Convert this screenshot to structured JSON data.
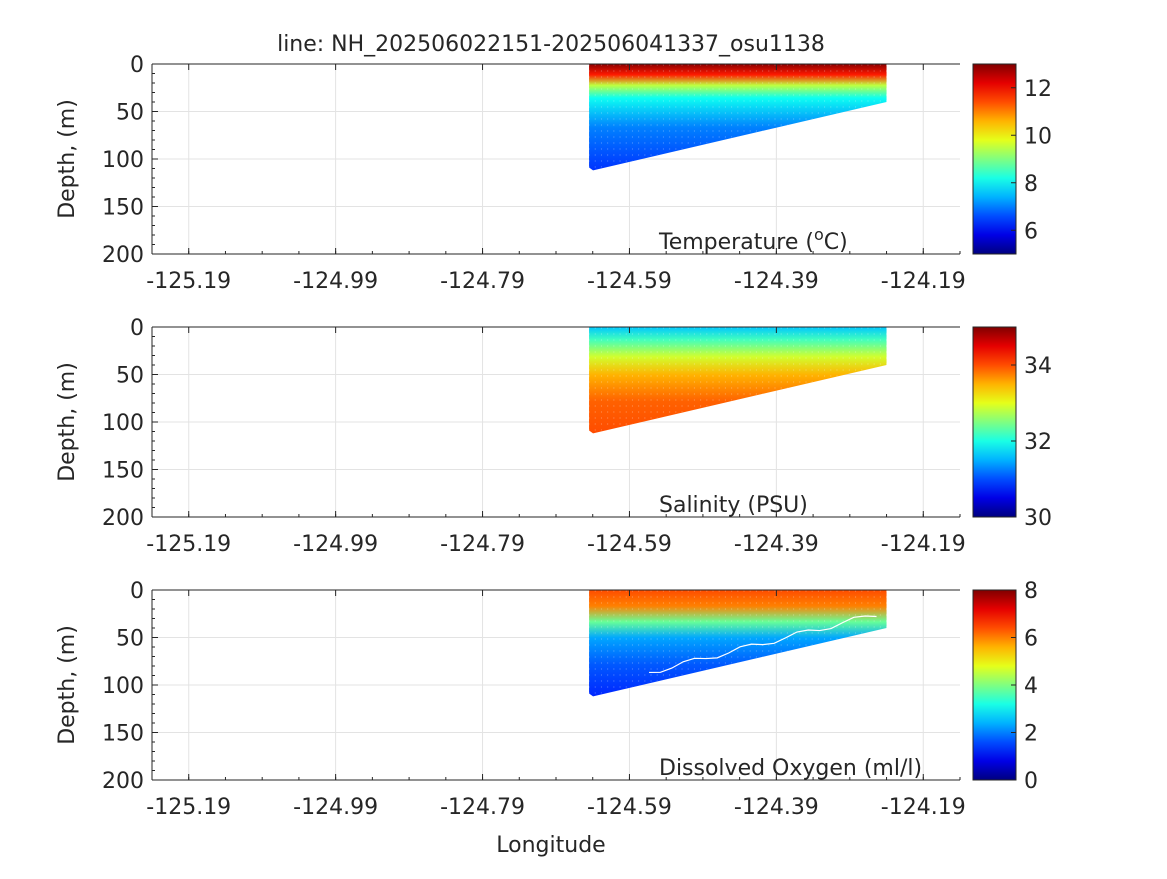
{
  "title": "line: NH_202506022151-202506041337_osu1138",
  "xlabel": "Longitude",
  "chart_data": [
    {
      "type": "scatter",
      "variable": "Temperature",
      "label_main": "Temperature (",
      "label_sup": "o",
      "label_end": "C)",
      "ylabel": "Depth, (m)",
      "xlim": [
        -125.24,
        -124.14
      ],
      "ylim": [
        0,
        200
      ],
      "y_reversed": true,
      "x_ticks": [
        "-125.19",
        "-124.99",
        "-124.79",
        "-124.59",
        "-124.39",
        "-124.19"
      ],
      "x_tick_values": [
        -125.19,
        -124.99,
        -124.79,
        -124.59,
        -124.39,
        -124.19
      ],
      "y_ticks": [
        "0",
        "50",
        "100",
        "150",
        "200"
      ],
      "y_tick_values": [
        0,
        50,
        100,
        150,
        200
      ],
      "grid": true,
      "colormap": "jet",
      "clim": [
        5,
        13
      ],
      "colorbar_ticks": [
        "6",
        "8",
        "10",
        "12"
      ],
      "colorbar_tick_values": [
        6,
        8,
        10,
        12
      ],
      "section": {
        "lon_start": -124.645,
        "lon_end": -124.24,
        "bottom_start": 112,
        "bottom_end": 40
      },
      "profile": [
        {
          "frac": 0.0,
          "value": 12.9
        },
        {
          "frac": 0.1,
          "value": 11.8
        },
        {
          "frac": 0.2,
          "value": 9.5
        },
        {
          "frac": 0.32,
          "value": 8.1
        },
        {
          "frac": 0.6,
          "value": 7.0
        },
        {
          "frac": 1.0,
          "value": 6.4
        }
      ]
    },
    {
      "type": "scatter",
      "variable": "Salinity",
      "label_main": "Salinity (PSU)",
      "ylabel": "Depth, (m)",
      "xlim": [
        -125.24,
        -124.14
      ],
      "ylim": [
        0,
        200
      ],
      "y_reversed": true,
      "x_ticks": [
        "-125.19",
        "-124.99",
        "-124.79",
        "-124.59",
        "-124.39",
        "-124.19"
      ],
      "x_tick_values": [
        -125.19,
        -124.99,
        -124.79,
        -124.59,
        -124.39,
        -124.19
      ],
      "y_ticks": [
        "0",
        "50",
        "100",
        "150",
        "200"
      ],
      "y_tick_values": [
        0,
        50,
        100,
        150,
        200
      ],
      "grid": true,
      "colormap": "jet",
      "clim": [
        30,
        35
      ],
      "colorbar_ticks": [
        "30",
        "32",
        "34"
      ],
      "colorbar_tick_values": [
        30,
        32,
        34
      ],
      "section": {
        "lon_start": -124.645,
        "lon_end": -124.24,
        "bottom_start": 112,
        "bottom_end": 40
      },
      "profile": [
        {
          "frac": 0.0,
          "value": 31.6
        },
        {
          "frac": 0.12,
          "value": 32.2
        },
        {
          "frac": 0.28,
          "value": 32.9
        },
        {
          "frac": 0.45,
          "value": 33.5
        },
        {
          "frac": 0.7,
          "value": 33.9
        },
        {
          "frac": 1.0,
          "value": 34.0
        }
      ]
    },
    {
      "type": "scatter",
      "variable": "Dissolved Oxygen",
      "label_main": "Dissolved Oxygen (ml/l)",
      "ylabel": "Depth, (m)",
      "xlim": [
        -125.24,
        -124.14
      ],
      "ylim": [
        0,
        200
      ],
      "y_reversed": true,
      "x_ticks": [
        "-125.19",
        "-124.99",
        "-124.79",
        "-124.59",
        "-124.39",
        "-124.19"
      ],
      "x_tick_values": [
        -125.19,
        -124.99,
        -124.79,
        -124.59,
        -124.39,
        -124.19
      ],
      "y_ticks": [
        "0",
        "50",
        "100",
        "150",
        "200"
      ],
      "y_tick_values": [
        0,
        50,
        100,
        150,
        200
      ],
      "grid": true,
      "colormap": "jet",
      "clim": [
        0,
        8
      ],
      "colorbar_ticks": [
        "0",
        "2",
        "4",
        "6",
        "8"
      ],
      "colorbar_tick_values": [
        0,
        2,
        4,
        6,
        8
      ],
      "section": {
        "lon_start": -124.645,
        "lon_end": -124.24,
        "bottom_start": 112,
        "bottom_end": 40
      },
      "profile": [
        {
          "frac": 0.0,
          "value": 6.4
        },
        {
          "frac": 0.15,
          "value": 6.0
        },
        {
          "frac": 0.3,
          "value": 3.8
        },
        {
          "frac": 0.45,
          "value": 2.3
        },
        {
          "frac": 0.7,
          "value": 1.7
        },
        {
          "frac": 1.0,
          "value": 1.3
        }
      ],
      "contour_color": "#ffffff"
    }
  ]
}
